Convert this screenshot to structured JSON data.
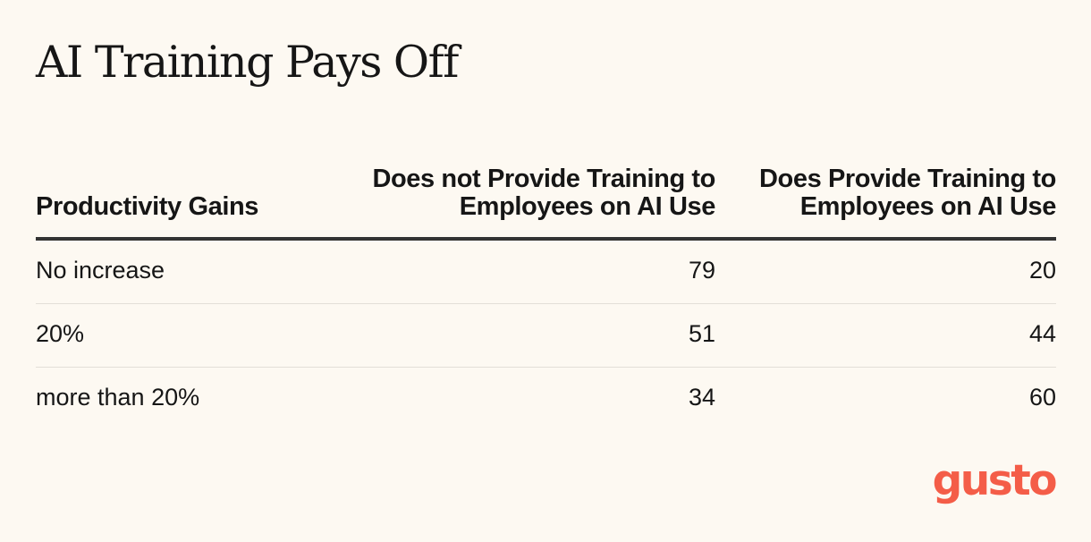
{
  "title": "AI Training Pays Off",
  "chart_data": {
    "type": "table",
    "title": "AI Training Pays Off",
    "columns": [
      "Productivity Gains",
      "Does not Provide Training to Employees on AI Use",
      "Does Provide Training to Employees on AI Use"
    ],
    "rows": [
      [
        "No increase",
        "79",
        "20"
      ],
      [
        "20%",
        "51",
        "44"
      ],
      [
        "more than 20%",
        "34",
        "60"
      ]
    ]
  },
  "logo": {
    "text": "gusto",
    "color": "#f45d48"
  },
  "colors": {
    "background": "#fdf9f2",
    "text": "#161616",
    "header_rule": "#333333",
    "row_rule": "#e3dfd8"
  }
}
